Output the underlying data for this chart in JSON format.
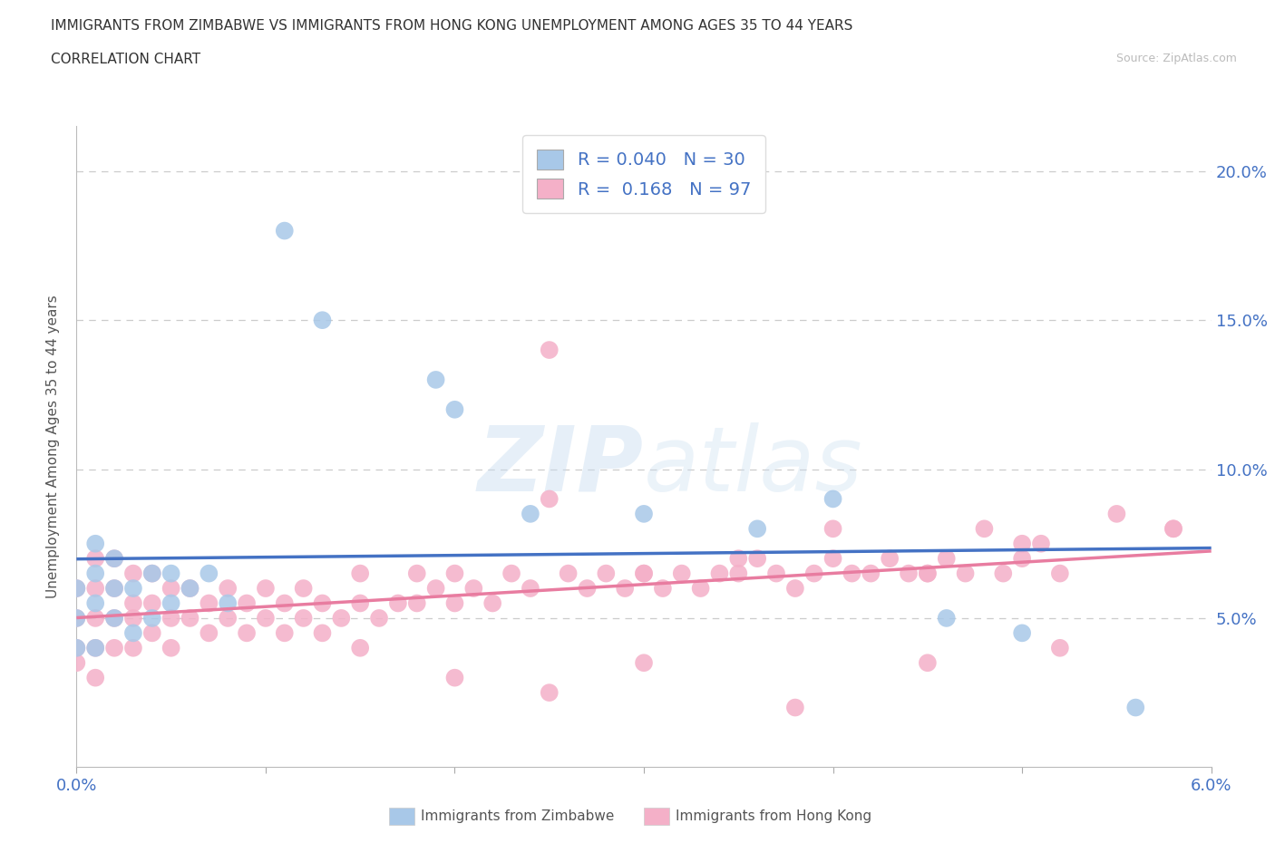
{
  "title": "IMMIGRANTS FROM ZIMBABWE VS IMMIGRANTS FROM HONG KONG UNEMPLOYMENT AMONG AGES 35 TO 44 YEARS",
  "subtitle": "CORRELATION CHART",
  "source": "Source: ZipAtlas.com",
  "ylabel_label": "Unemployment Among Ages 35 to 44 years",
  "legend1_label": "Immigrants from Zimbabwe",
  "legend2_label": "Immigrants from Hong Kong",
  "R1": 0.04,
  "N1": 30,
  "R2": 0.168,
  "N2": 97,
  "color_zimbabwe": "#a8c8e8",
  "color_hongkong": "#f4b0c8",
  "color_line_zimbabwe": "#4472c4",
  "color_line_hongkong": "#e87ca0",
  "watermark_color": "#c8ddf0",
  "xlim": [
    0.0,
    0.06
  ],
  "ylim": [
    0.0,
    0.215
  ],
  "yticks": [
    0.05,
    0.1,
    0.15,
    0.2
  ],
  "ytick_labels": [
    "5.0%",
    "10.0%",
    "15.0%",
    "20.0%"
  ],
  "xticks": [
    0.0,
    0.01,
    0.02,
    0.03,
    0.04,
    0.05,
    0.06
  ],
  "gridline_y": [
    0.05,
    0.1,
    0.15,
    0.2
  ],
  "x_zimbabwe": [
    0.0,
    0.0,
    0.0,
    0.001,
    0.001,
    0.001,
    0.001,
    0.002,
    0.002,
    0.002,
    0.003,
    0.003,
    0.004,
    0.004,
    0.005,
    0.005,
    0.006,
    0.007,
    0.008,
    0.011,
    0.013,
    0.019,
    0.02,
    0.024,
    0.03,
    0.036,
    0.04,
    0.046,
    0.05,
    0.056
  ],
  "y_zimbabwe": [
    0.04,
    0.05,
    0.06,
    0.04,
    0.055,
    0.065,
    0.075,
    0.05,
    0.06,
    0.07,
    0.045,
    0.06,
    0.05,
    0.065,
    0.055,
    0.065,
    0.06,
    0.065,
    0.055,
    0.18,
    0.15,
    0.13,
    0.12,
    0.085,
    0.085,
    0.08,
    0.09,
    0.05,
    0.045,
    0.02
  ],
  "x_hongkong": [
    0.0,
    0.0,
    0.0,
    0.0,
    0.001,
    0.001,
    0.001,
    0.001,
    0.001,
    0.002,
    0.002,
    0.002,
    0.002,
    0.003,
    0.003,
    0.003,
    0.003,
    0.004,
    0.004,
    0.004,
    0.005,
    0.005,
    0.005,
    0.006,
    0.006,
    0.007,
    0.007,
    0.008,
    0.008,
    0.009,
    0.009,
    0.01,
    0.01,
    0.011,
    0.011,
    0.012,
    0.012,
    0.013,
    0.013,
    0.014,
    0.015,
    0.015,
    0.016,
    0.017,
    0.018,
    0.018,
    0.019,
    0.02,
    0.02,
    0.021,
    0.022,
    0.023,
    0.024,
    0.025,
    0.026,
    0.027,
    0.028,
    0.029,
    0.03,
    0.031,
    0.032,
    0.033,
    0.034,
    0.035,
    0.036,
    0.037,
    0.038,
    0.039,
    0.04,
    0.041,
    0.042,
    0.043,
    0.044,
    0.045,
    0.046,
    0.047,
    0.048,
    0.049,
    0.05,
    0.051,
    0.052,
    0.025,
    0.03,
    0.035,
    0.04,
    0.045,
    0.05,
    0.055,
    0.058,
    0.015,
    0.02,
    0.025,
    0.03,
    0.038,
    0.045,
    0.052,
    0.058
  ],
  "y_hongkong": [
    0.035,
    0.04,
    0.05,
    0.06,
    0.03,
    0.04,
    0.05,
    0.06,
    0.07,
    0.04,
    0.05,
    0.06,
    0.07,
    0.04,
    0.05,
    0.055,
    0.065,
    0.045,
    0.055,
    0.065,
    0.04,
    0.05,
    0.06,
    0.05,
    0.06,
    0.045,
    0.055,
    0.05,
    0.06,
    0.045,
    0.055,
    0.05,
    0.06,
    0.045,
    0.055,
    0.05,
    0.06,
    0.045,
    0.055,
    0.05,
    0.055,
    0.065,
    0.05,
    0.055,
    0.055,
    0.065,
    0.06,
    0.055,
    0.065,
    0.06,
    0.055,
    0.065,
    0.06,
    0.14,
    0.065,
    0.06,
    0.065,
    0.06,
    0.065,
    0.06,
    0.065,
    0.06,
    0.065,
    0.065,
    0.07,
    0.065,
    0.06,
    0.065,
    0.07,
    0.065,
    0.065,
    0.07,
    0.065,
    0.065,
    0.07,
    0.065,
    0.08,
    0.065,
    0.07,
    0.075,
    0.065,
    0.09,
    0.065,
    0.07,
    0.08,
    0.065,
    0.075,
    0.085,
    0.08,
    0.04,
    0.03,
    0.025,
    0.035,
    0.02,
    0.035,
    0.04,
    0.08
  ]
}
